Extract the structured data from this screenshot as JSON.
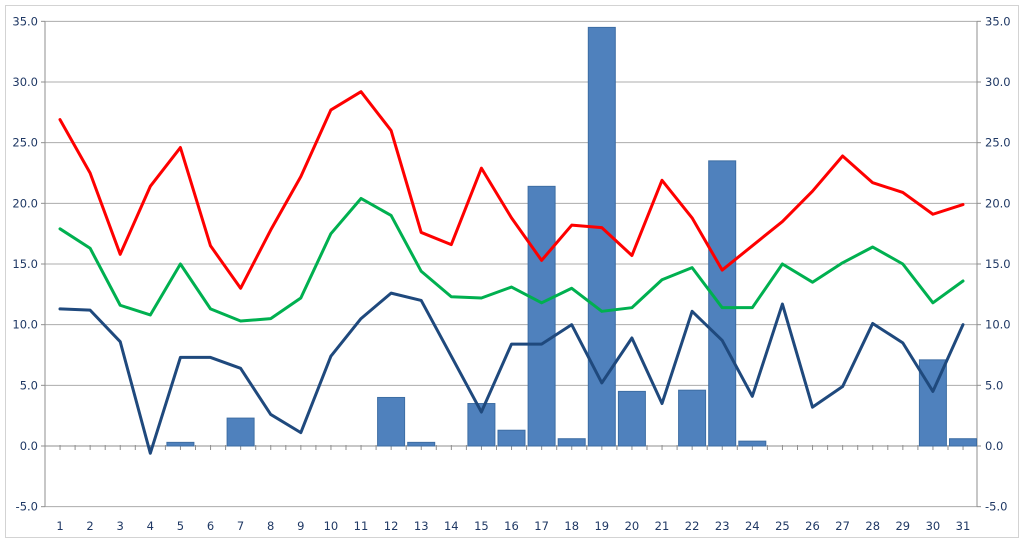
{
  "chart": {
    "title": "",
    "background": "#FFFFFF",
    "frame_border_color": "#D3D3D3",
    "gridline_color": "#ACACAC",
    "axis_line_color": "#8F8F8F",
    "tick_color": "#8F8F8F",
    "axis_label_color": "#1F3864",
    "left_axis_labels": [
      "35.0",
      "30.0",
      "25.0",
      "20.0",
      "15.0",
      "10.0",
      "5.0",
      "0.0",
      "-5.0"
    ],
    "right_axis_labels": [
      "35.0",
      "30.0",
      "25.0",
      "20.0",
      "15.0",
      "10.0",
      "5.0",
      "0.0",
      "-5.0"
    ],
    "x_axis_labels": [
      "1",
      "2",
      "3",
      "4",
      "5",
      "6",
      "7",
      "8",
      "9",
      "10",
      "11",
      "12",
      "13",
      "14",
      "15",
      "16",
      "17",
      "18",
      "19",
      "20",
      "21",
      "22",
      "23",
      "24",
      "25",
      "26",
      "27",
      "28",
      "29",
      "30",
      "31"
    ]
  },
  "chart_data": {
    "type": "combo",
    "title": "",
    "xlabel": "",
    "ylabel": "",
    "categories": [
      1,
      2,
      3,
      4,
      5,
      6,
      7,
      8,
      9,
      10,
      11,
      12,
      13,
      14,
      15,
      16,
      17,
      18,
      19,
      20,
      21,
      22,
      23,
      24,
      25,
      26,
      27,
      28,
      29,
      30,
      31
    ],
    "ylim": [
      -5.0,
      35.0
    ],
    "y_tick_step": 5.0,
    "grid": "horizontal",
    "legend": "none",
    "dual_axis": true,
    "series": [
      {
        "name": "daily-bars",
        "type": "bar",
        "color": "#4F81BD",
        "border_color": "#3D6DA3",
        "values": [
          0,
          0,
          0,
          0,
          0.3,
          0,
          2.3,
          0,
          0,
          0,
          0,
          4.0,
          0.3,
          0,
          3.5,
          1.3,
          21.4,
          0.6,
          34.5,
          4.5,
          0,
          4.6,
          23.5,
          0.4,
          0,
          0,
          0,
          0,
          0,
          7.1,
          0.6
        ]
      },
      {
        "name": "red-line",
        "type": "line",
        "color": "#FE0000",
        "stroke_width": 3,
        "values": [
          26.9,
          22.5,
          15.8,
          21.4,
          24.6,
          16.5,
          13.0,
          17.8,
          22.2,
          27.7,
          29.2,
          26.0,
          17.6,
          16.6,
          22.9,
          18.8,
          15.3,
          18.2,
          18.0,
          15.7,
          21.9,
          18.8,
          14.5,
          16.5,
          18.5,
          21.0,
          23.9,
          21.7,
          20.9,
          19.1,
          19.9
        ]
      },
      {
        "name": "green-line",
        "type": "line",
        "color": "#00B050",
        "stroke_width": 3,
        "values": [
          17.9,
          16.3,
          11.6,
          10.8,
          15.0,
          11.3,
          10.3,
          10.5,
          12.2,
          17.5,
          20.4,
          19.0,
          14.4,
          12.3,
          12.2,
          13.1,
          11.8,
          13.0,
          11.1,
          11.4,
          13.7,
          14.7,
          11.4,
          11.4,
          15.0,
          13.5,
          15.1,
          16.4,
          15.0,
          11.8,
          13.6
        ]
      },
      {
        "name": "navy-line",
        "type": "line",
        "color": "#1F497D",
        "stroke_width": 3,
        "values": [
          11.3,
          11.2,
          8.6,
          -0.6,
          7.3,
          7.3,
          6.4,
          2.6,
          1.1,
          7.4,
          10.5,
          12.6,
          12.0,
          7.4,
          2.8,
          8.4,
          8.4,
          10.0,
          5.2,
          8.9,
          3.5,
          11.1,
          8.7,
          4.1,
          11.7,
          3.2,
          4.9,
          10.1,
          8.5,
          4.5,
          10.0
        ]
      }
    ]
  }
}
